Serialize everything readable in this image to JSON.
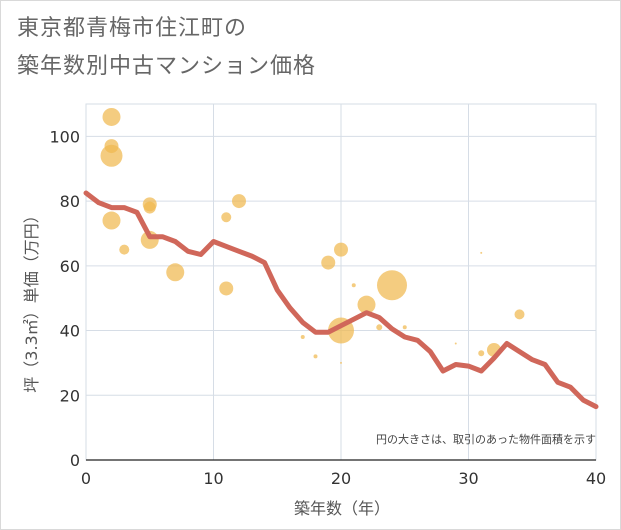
{
  "title_line1": "東京都青梅市住江町の",
  "title_line2": "築年数別中古マンション価格",
  "chart_data": {
    "type": "scatter",
    "title": "東京都青梅市住江町の築年数別中古マンション価格",
    "xlabel": "築年数（年）",
    "ylabel": "坪（3.3㎡）単価（万円）",
    "xlim": [
      0,
      40
    ],
    "ylim": [
      0,
      110
    ],
    "xticks": [
      0,
      10,
      20,
      30,
      40
    ],
    "yticks": [
      0,
      20,
      40,
      60,
      80,
      100
    ],
    "grid": true,
    "note": "円の大きさは、取引のあった物件面積を示す",
    "bubble_color": "#f0b94f",
    "line_color": "#d0675a",
    "series": [
      {
        "type": "bubble",
        "points": [
          {
            "x": 2,
            "y": 106,
            "size": 9
          },
          {
            "x": 2,
            "y": 97,
            "size": 7
          },
          {
            "x": 2,
            "y": 94,
            "size": 11
          },
          {
            "x": 2,
            "y": 74,
            "size": 9
          },
          {
            "x": 3,
            "y": 65,
            "size": 5
          },
          {
            "x": 5,
            "y": 79,
            "size": 7
          },
          {
            "x": 5,
            "y": 78,
            "size": 6
          },
          {
            "x": 5,
            "y": 68,
            "size": 9
          },
          {
            "x": 7,
            "y": 58,
            "size": 9
          },
          {
            "x": 11,
            "y": 75,
            "size": 5
          },
          {
            "x": 11,
            "y": 53,
            "size": 7
          },
          {
            "x": 12,
            "y": 80,
            "size": 7
          },
          {
            "x": 17,
            "y": 38,
            "size": 2
          },
          {
            "x": 18,
            "y": 32,
            "size": 2
          },
          {
            "x": 19,
            "y": 61,
            "size": 7
          },
          {
            "x": 20,
            "y": 65,
            "size": 7
          },
          {
            "x": 20,
            "y": 40,
            "size": 13
          },
          {
            "x": 20,
            "y": 30,
            "size": 1
          },
          {
            "x": 21,
            "y": 54,
            "size": 2
          },
          {
            "x": 22,
            "y": 48,
            "size": 9
          },
          {
            "x": 23,
            "y": 41,
            "size": 3
          },
          {
            "x": 24,
            "y": 54,
            "size": 15
          },
          {
            "x": 25,
            "y": 41,
            "size": 2
          },
          {
            "x": 29,
            "y": 36,
            "size": 1
          },
          {
            "x": 31,
            "y": 64,
            "size": 1
          },
          {
            "x": 31,
            "y": 33,
            "size": 3
          },
          {
            "x": 32,
            "y": 34,
            "size": 7
          },
          {
            "x": 34,
            "y": 45,
            "size": 5
          }
        ]
      },
      {
        "type": "line",
        "x": [
          0,
          1,
          2,
          3,
          4,
          5,
          6,
          7,
          8,
          9,
          10,
          11,
          12,
          13,
          14,
          15,
          16,
          17,
          18,
          19,
          20,
          21,
          22,
          23,
          24,
          25,
          26,
          27,
          28,
          29,
          30,
          31,
          32,
          33,
          34,
          35,
          36,
          37,
          38,
          39,
          40
        ],
        "y": [
          82.5,
          79.5,
          78,
          78,
          76.5,
          69,
          69,
          67.5,
          64.5,
          63.5,
          67.5,
          66,
          64.5,
          63,
          61,
          52.5,
          47,
          42.5,
          39.5,
          39.5,
          41.5,
          43.5,
          45.5,
          44,
          40.5,
          38,
          37,
          33.5,
          27.5,
          29.5,
          29,
          27.5,
          31.5,
          36,
          33.5,
          31,
          29.5,
          24,
          22.5,
          18.5,
          16.5
        ]
      }
    ]
  }
}
